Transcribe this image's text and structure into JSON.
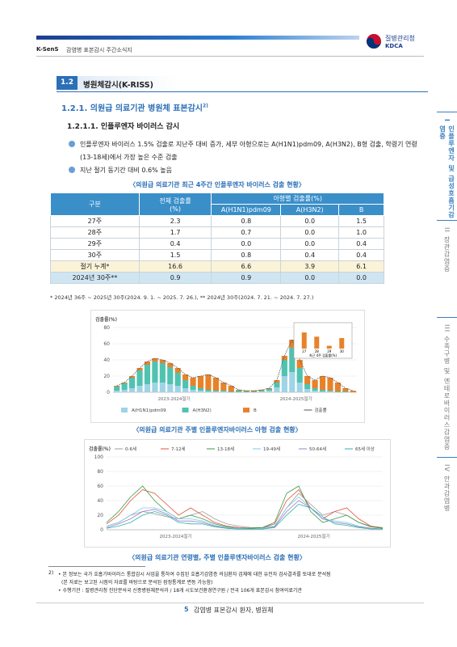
{
  "header": {
    "brand": "K-SenS",
    "subtitle": "감염병 표본감시 주간소식지",
    "agency": "질병관리청",
    "agency_en": "KDCA"
  },
  "sidebar": [
    {
      "num": "I",
      "label": "인플루엔자 및 급성호흡기감염증"
    },
    {
      "num": "II",
      "label": "장관감염증"
    },
    {
      "num": "III",
      "label": "수족구병 및 엔테로바이러스감염증"
    },
    {
      "num": "IV",
      "label": "안과감염병"
    }
  ],
  "section": {
    "num": "1.2",
    "title": "병원체감시(K-RISS)"
  },
  "subsection": {
    "title": "1.2.1. 의원급 의료기관 병원체 표본감시",
    "note": "2)"
  },
  "subsubsection": "1.2.1.1. 인플루엔자 바이러스 감시",
  "bullets": [
    "인플루엔자 바이러스 1.5% 검출로 지난주 대비 증가, 세부 아형으로는 A(H1N1)pdm09, A(H3N2), B형 검출, 학령기 연령(13-18세)에서 가장 높은 수준 검출",
    "지난 절기 동기간 대비 0.6% 높음"
  ],
  "table": {
    "caption": "〈의원급 의료기관 최근 4주간 인플루엔자 바이러스 검출 현황〉",
    "header": [
      "구분",
      "전체 검출률\n(%)",
      "아형별 검출률(%)"
    ],
    "subheader": [
      "A(H1N1)pdm09",
      "A(H3N2)",
      "B"
    ],
    "rows": [
      [
        "27주",
        "2.3",
        "0.8",
        "0.0",
        "1.5"
      ],
      [
        "28주",
        "1.7",
        "0.7",
        "0.0",
        "1.0"
      ],
      [
        "29주",
        "0.4",
        "0.0",
        "0.0",
        "0.4"
      ],
      [
        "30주",
        "1.5",
        "0.8",
        "0.4",
        "0.4"
      ],
      [
        "절기 누계*",
        "16.6",
        "6.6",
        "3.9",
        "6.1"
      ],
      [
        "2024년 30주**",
        "0.9",
        "0.9",
        "0.0",
        "0.0"
      ]
    ],
    "footnote": "* 2024년 36주 ~ 2025년 30주(2024. 9. 1. ~ 2025. 7. 26.), ** 2024년 30주(2024. 7. 21. ~ 2024. 7. 27.)"
  },
  "captions": [
    "〈의원급 의료기관 주별 인플루엔자바이러스 아형 검출 현황〉",
    "〈의원급 의료기관 연령별, 주별 인플루엔자바이러스 검출 현황〉"
  ],
  "chart_data": [
    {
      "type": "bar",
      "ylabel": "검출률(%)",
      "ylim": [
        0,
        80
      ],
      "yticks": [
        0,
        20,
        40,
        60,
        80
      ],
      "seasons": [
        "2023-2024절기",
        "2024-2025절기"
      ],
      "series": [
        {
          "name": "A(H1N1)pdm09",
          "color": "#9fd3e6",
          "values": [
            2,
            3,
            5,
            8,
            10,
            12,
            12,
            10,
            8,
            5,
            3,
            2,
            1,
            1,
            1,
            0,
            0,
            0,
            0,
            1,
            2,
            6,
            20,
            25,
            12,
            4,
            2,
            1,
            1,
            0,
            0,
            0
          ]
        },
        {
          "name": "A(H3N2)",
          "color": "#4fc3b0",
          "values": [
            5,
            8,
            13,
            19,
            24,
            26,
            24,
            21,
            16,
            10,
            5,
            3,
            2,
            1,
            1,
            1,
            2,
            1,
            1,
            1,
            2,
            6,
            20,
            30,
            18,
            6,
            3,
            2,
            1,
            1,
            1,
            0
          ]
        },
        {
          "name": "B",
          "color": "#e8822a",
          "values": [
            1,
            1,
            2,
            3,
            4,
            4,
            4,
            5,
            6,
            7,
            10,
            15,
            19,
            16,
            10,
            7,
            1,
            1,
            1,
            1,
            1,
            3,
            5,
            10,
            10,
            10,
            10,
            17,
            16,
            11,
            4,
            2
          ]
        },
        {
          "name": "검출률",
          "color": "#555555",
          "line": true,
          "values": [
            8,
            12,
            20,
            30,
            38,
            42,
            40,
            36,
            30,
            22,
            18,
            20,
            22,
            18,
            12,
            8,
            3,
            2,
            2,
            3,
            5,
            15,
            45,
            65,
            40,
            20,
            15,
            20,
            18,
            12,
            5,
            2
          ]
        }
      ],
      "inset": {
        "title": "최근 4주 검출률(%)",
        "categories": [
          "27",
          "28",
          "29",
          "30"
        ],
        "values": [
          2.3,
          1.7,
          0.4,
          1.5
        ],
        "ylim": [
          0,
          3
        ],
        "color": "#e8822a"
      }
    },
    {
      "type": "line",
      "ylabel": "검출률(%)",
      "ylim": [
        0,
        100
      ],
      "yticks": [
        0,
        20,
        40,
        60,
        80,
        100
      ],
      "seasons": [
        "2023-2024절기",
        "2024-2025절기"
      ],
      "series": [
        {
          "name": "0-6세",
          "color": "#9e9e9e",
          "values": [
            5,
            10,
            20,
            25,
            22,
            18,
            15,
            20,
            25,
            15,
            8,
            5,
            3,
            3,
            5,
            30,
            50,
            35,
            20,
            25,
            20,
            10,
            5,
            3
          ]
        },
        {
          "name": "7-12세",
          "color": "#e0533a",
          "values": [
            8,
            20,
            40,
            55,
            50,
            35,
            20,
            30,
            20,
            10,
            5,
            3,
            2,
            3,
            8,
            40,
            55,
            30,
            15,
            25,
            30,
            15,
            5,
            2
          ]
        },
        {
          "name": "13-18세",
          "color": "#3a9a4a",
          "values": [
            10,
            25,
            45,
            60,
            40,
            25,
            15,
            20,
            15,
            8,
            4,
            2,
            2,
            3,
            10,
            50,
            60,
            25,
            10,
            15,
            20,
            10,
            4,
            2
          ]
        },
        {
          "name": "19-49세",
          "color": "#7fc8e8",
          "values": [
            5,
            10,
            20,
            30,
            30,
            25,
            15,
            15,
            12,
            6,
            3,
            2,
            1,
            2,
            5,
            30,
            45,
            30,
            15,
            12,
            10,
            5,
            2,
            1
          ]
        },
        {
          "name": "50-64세",
          "color": "#9a7cc8",
          "values": [
            3,
            8,
            15,
            25,
            28,
            22,
            12,
            12,
            10,
            5,
            2,
            1,
            1,
            1,
            4,
            25,
            40,
            30,
            15,
            10,
            8,
            4,
            2,
            1
          ]
        },
        {
          "name": "65세 이상",
          "color": "#2bb5a8",
          "values": [
            2,
            5,
            10,
            20,
            25,
            20,
            10,
            8,
            8,
            4,
            2,
            1,
            1,
            1,
            3,
            20,
            35,
            30,
            18,
            8,
            6,
            3,
            1,
            1
          ]
        }
      ]
    }
  ],
  "footnotes": {
    "mark": "2)",
    "lines": [
      "• 본 정보는 국가 호흡기바이러스 통합감시 사업을 통하여 수집된 호흡기감염증 의심환자 검체에 대한 유전자 검사결과를 토대로 분석됨",
      "(본 자료는 보고된 시점의 자료를 바탕으로 분석된 잠정통계로 변동 가능함)",
      "• 수행기관 : 질병관리청 진단분석국 신종병원체분석과 / 18개 시도보건환경연구원 / 전국 106개 표본감시 참여의료기관"
    ]
  },
  "footer": {
    "page": "5",
    "text": "감염병 표본감시 환자, 병원체"
  }
}
